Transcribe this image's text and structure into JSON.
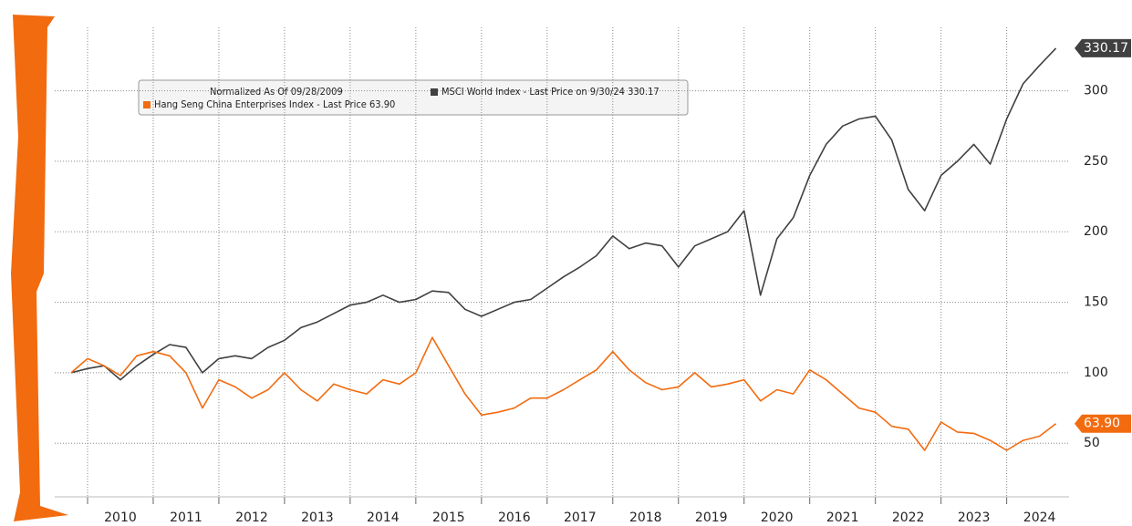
{
  "chart_data": {
    "type": "line",
    "legend_title": "Normalized As Of 09/28/2009",
    "x": [
      2009.75,
      2010,
      2010.25,
      2010.5,
      2010.75,
      2011,
      2011.25,
      2011.5,
      2011.75,
      2012,
      2012.25,
      2012.5,
      2012.75,
      2013,
      2013.25,
      2013.5,
      2013.75,
      2014,
      2014.25,
      2014.5,
      2014.75,
      2015,
      2015.25,
      2015.5,
      2015.75,
      2016,
      2016.25,
      2016.5,
      2016.75,
      2017,
      2017.25,
      2017.5,
      2017.75,
      2018,
      2018.25,
      2018.5,
      2018.75,
      2019,
      2019.25,
      2019.5,
      2019.75,
      2020,
      2020.25,
      2020.5,
      2020.75,
      2021,
      2021.25,
      2021.5,
      2021.75,
      2022,
      2022.25,
      2022.5,
      2022.75,
      2023,
      2023.25,
      2023.5,
      2023.75,
      2024,
      2024.25,
      2024.5,
      2024.75
    ],
    "series": [
      {
        "name": "MSCI World Index - Last Price on 9/30/24 330.17",
        "color": "#404040",
        "end_label": "330.17",
        "values": [
          100,
          103,
          105,
          95,
          105,
          113,
          120,
          118,
          100,
          110,
          112,
          110,
          118,
          123,
          132,
          136,
          142,
          148,
          150,
          155,
          150,
          152,
          158,
          157,
          145,
          140,
          145,
          150,
          152,
          160,
          168,
          175,
          183,
          197,
          188,
          192,
          190,
          175,
          190,
          195,
          200,
          215,
          155,
          195,
          210,
          240,
          262,
          275,
          280,
          282,
          265,
          230,
          215,
          240,
          250,
          262,
          248,
          280,
          305,
          318,
          330.17
        ]
      },
      {
        "name": "Hang Seng China Enterprises Index - Last Price 63.90",
        "color": "#f26b0f",
        "end_label": "63.90",
        "values": [
          100,
          110,
          105,
          98,
          112,
          115,
          112,
          100,
          75,
          95,
          90,
          82,
          88,
          100,
          88,
          80,
          92,
          88,
          85,
          95,
          92,
          100,
          125,
          105,
          85,
          70,
          72,
          75,
          82,
          82,
          88,
          95,
          102,
          115,
          102,
          93,
          88,
          90,
          100,
          90,
          92,
          95,
          80,
          88,
          85,
          102,
          95,
          85,
          75,
          72,
          62,
          60,
          45,
          65,
          58,
          57,
          52,
          45,
          52,
          55,
          63.9
        ]
      }
    ],
    "xlim": [
      2009.5,
      2024.95
    ],
    "xticks": [
      2010,
      2011,
      2012,
      2013,
      2014,
      2015,
      2016,
      2017,
      2018,
      2019,
      2020,
      2021,
      2022,
      2023,
      2024
    ],
    "ylim": [
      12,
      345
    ],
    "yticks": [
      50,
      100,
      150,
      200,
      250,
      300
    ],
    "grid": true
  }
}
